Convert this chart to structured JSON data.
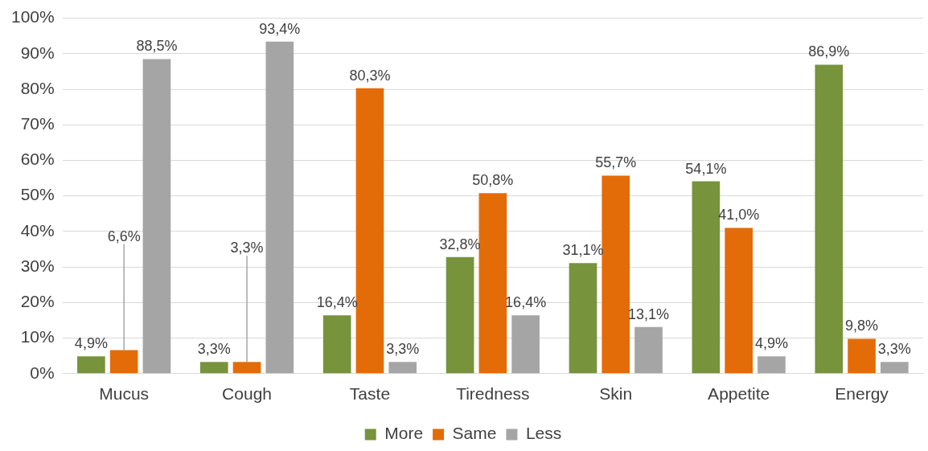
{
  "chart_data": {
    "type": "bar",
    "categories": [
      "Mucus",
      "Cough",
      "Taste",
      "Tiredness",
      "Skin",
      "Appetite",
      "Energy"
    ],
    "series": [
      {
        "name": "More",
        "color": "#77933c",
        "values": [
          4.9,
          3.3,
          16.4,
          32.8,
          31.1,
          54.1,
          86.9
        ],
        "value_labels": [
          "4,9%",
          "3,3%",
          "16,4%",
          "32,8%",
          "31,1%",
          "54,1%",
          "86,9%"
        ]
      },
      {
        "name": "Same",
        "color": "#e36c09",
        "values": [
          6.6,
          3.3,
          80.3,
          50.8,
          55.7,
          41.0,
          9.8
        ],
        "value_labels": [
          "6,6%",
          "3,3%",
          "80,3%",
          "50,8%",
          "55,7%",
          "41,0%",
          "9,8%"
        ]
      },
      {
        "name": "Less",
        "color": "#a5a5a5",
        "values": [
          88.5,
          93.4,
          3.3,
          16.4,
          13.1,
          4.9,
          3.3
        ],
        "value_labels": [
          "88,5%",
          "93,4%",
          "3,3%",
          "16,4%",
          "13,1%",
          "4,9%",
          "3,3%"
        ]
      }
    ],
    "ylim": [
      0,
      100
    ],
    "yticks": [
      {
        "value": 0,
        "label": "0%"
      },
      {
        "value": 10,
        "label": "10%"
      },
      {
        "value": 20,
        "label": "20%"
      },
      {
        "value": 30,
        "label": "30%"
      },
      {
        "value": 40,
        "label": "40%"
      },
      {
        "value": 50,
        "label": "50%"
      },
      {
        "value": 60,
        "label": "60%"
      },
      {
        "value": 70,
        "label": "70%"
      },
      {
        "value": 80,
        "label": "80%"
      },
      {
        "value": 90,
        "label": "90%"
      },
      {
        "value": 100,
        "label": "100%"
      }
    ],
    "grid": "y",
    "legend": "bottom"
  }
}
